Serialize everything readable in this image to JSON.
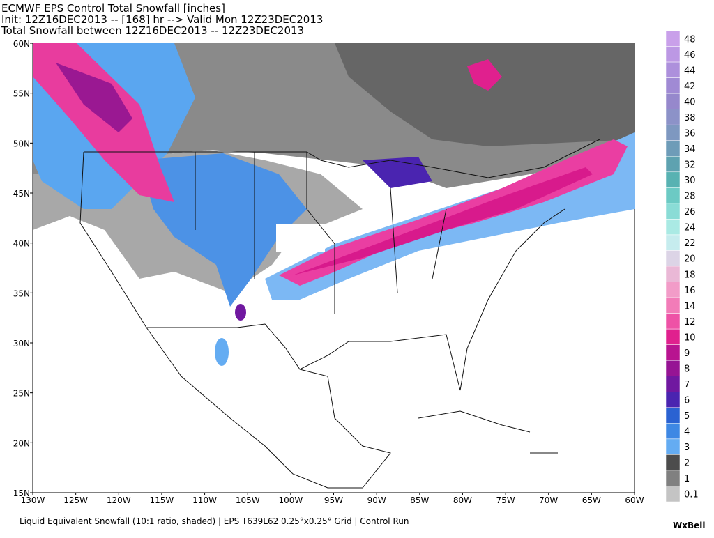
{
  "header": {
    "lines": [
      "ECMWF EPS Control Total Snowfall [inches]",
      "Init: 12Z16DEC2013 -- [168] hr --> Valid Mon 12Z23DEC2013",
      "Total Snowfall between 12Z16DEC2013 -- 12Z23DEC2013"
    ]
  },
  "map": {
    "lat_labels": [
      "60N",
      "55N",
      "50N",
      "45N",
      "40N",
      "35N",
      "30N",
      "25N",
      "20N",
      "15N"
    ],
    "lon_labels": [
      "130W",
      "125W",
      "120W",
      "115W",
      "110W",
      "105W",
      "100W",
      "95W",
      "90W",
      "85W",
      "80W",
      "75W",
      "70W",
      "65W",
      "60W"
    ]
  },
  "colorbar": [
    {
      "label": "48",
      "color": "#c9a0ea"
    },
    {
      "label": "46",
      "color": "#bc98e4"
    },
    {
      "label": "44",
      "color": "#ad90dc"
    },
    {
      "label": "42",
      "color": "#a08ad4"
    },
    {
      "label": "40",
      "color": "#9688cc"
    },
    {
      "label": "38",
      "color": "#8c92c8"
    },
    {
      "label": "36",
      "color": "#7e98c0"
    },
    {
      "label": "34",
      "color": "#6e9cb8"
    },
    {
      "label": "32",
      "color": "#5ea2b0"
    },
    {
      "label": "30",
      "color": "#58b2b2"
    },
    {
      "label": "28",
      "color": "#6ccac4"
    },
    {
      "label": "26",
      "color": "#8adcd6"
    },
    {
      "label": "24",
      "color": "#aaeae4"
    },
    {
      "label": "22",
      "color": "#c6ecee"
    },
    {
      "label": "20",
      "color": "#dcd4e6"
    },
    {
      "label": "18",
      "color": "#eab8d6"
    },
    {
      "label": "16",
      "color": "#f29cc8"
    },
    {
      "label": "14",
      "color": "#f27cb8"
    },
    {
      "label": "12",
      "color": "#ee52a6"
    },
    {
      "label": "10",
      "color": "#e0208e"
    },
    {
      "label": "9",
      "color": "#b81490"
    },
    {
      "label": "8",
      "color": "#961494"
    },
    {
      "label": "7",
      "color": "#7018a0"
    },
    {
      "label": "6",
      "color": "#4a24b0"
    },
    {
      "label": "5",
      "color": "#2a62d2"
    },
    {
      "label": "4",
      "color": "#3e88e4"
    },
    {
      "label": "3",
      "color": "#64acf2"
    },
    {
      "label": "2",
      "color": "#4c4c4c"
    },
    {
      "label": "1",
      "color": "#808080"
    },
    {
      "label": "0.1",
      "color": "#c4c4c4"
    }
  ],
  "footer": {
    "text": "Liquid Equivalent Snowfall (10:1 ratio, shaded) | EPS T639L62 0.25°x0.25° Grid | Control Run",
    "logo": "WxBell"
  }
}
